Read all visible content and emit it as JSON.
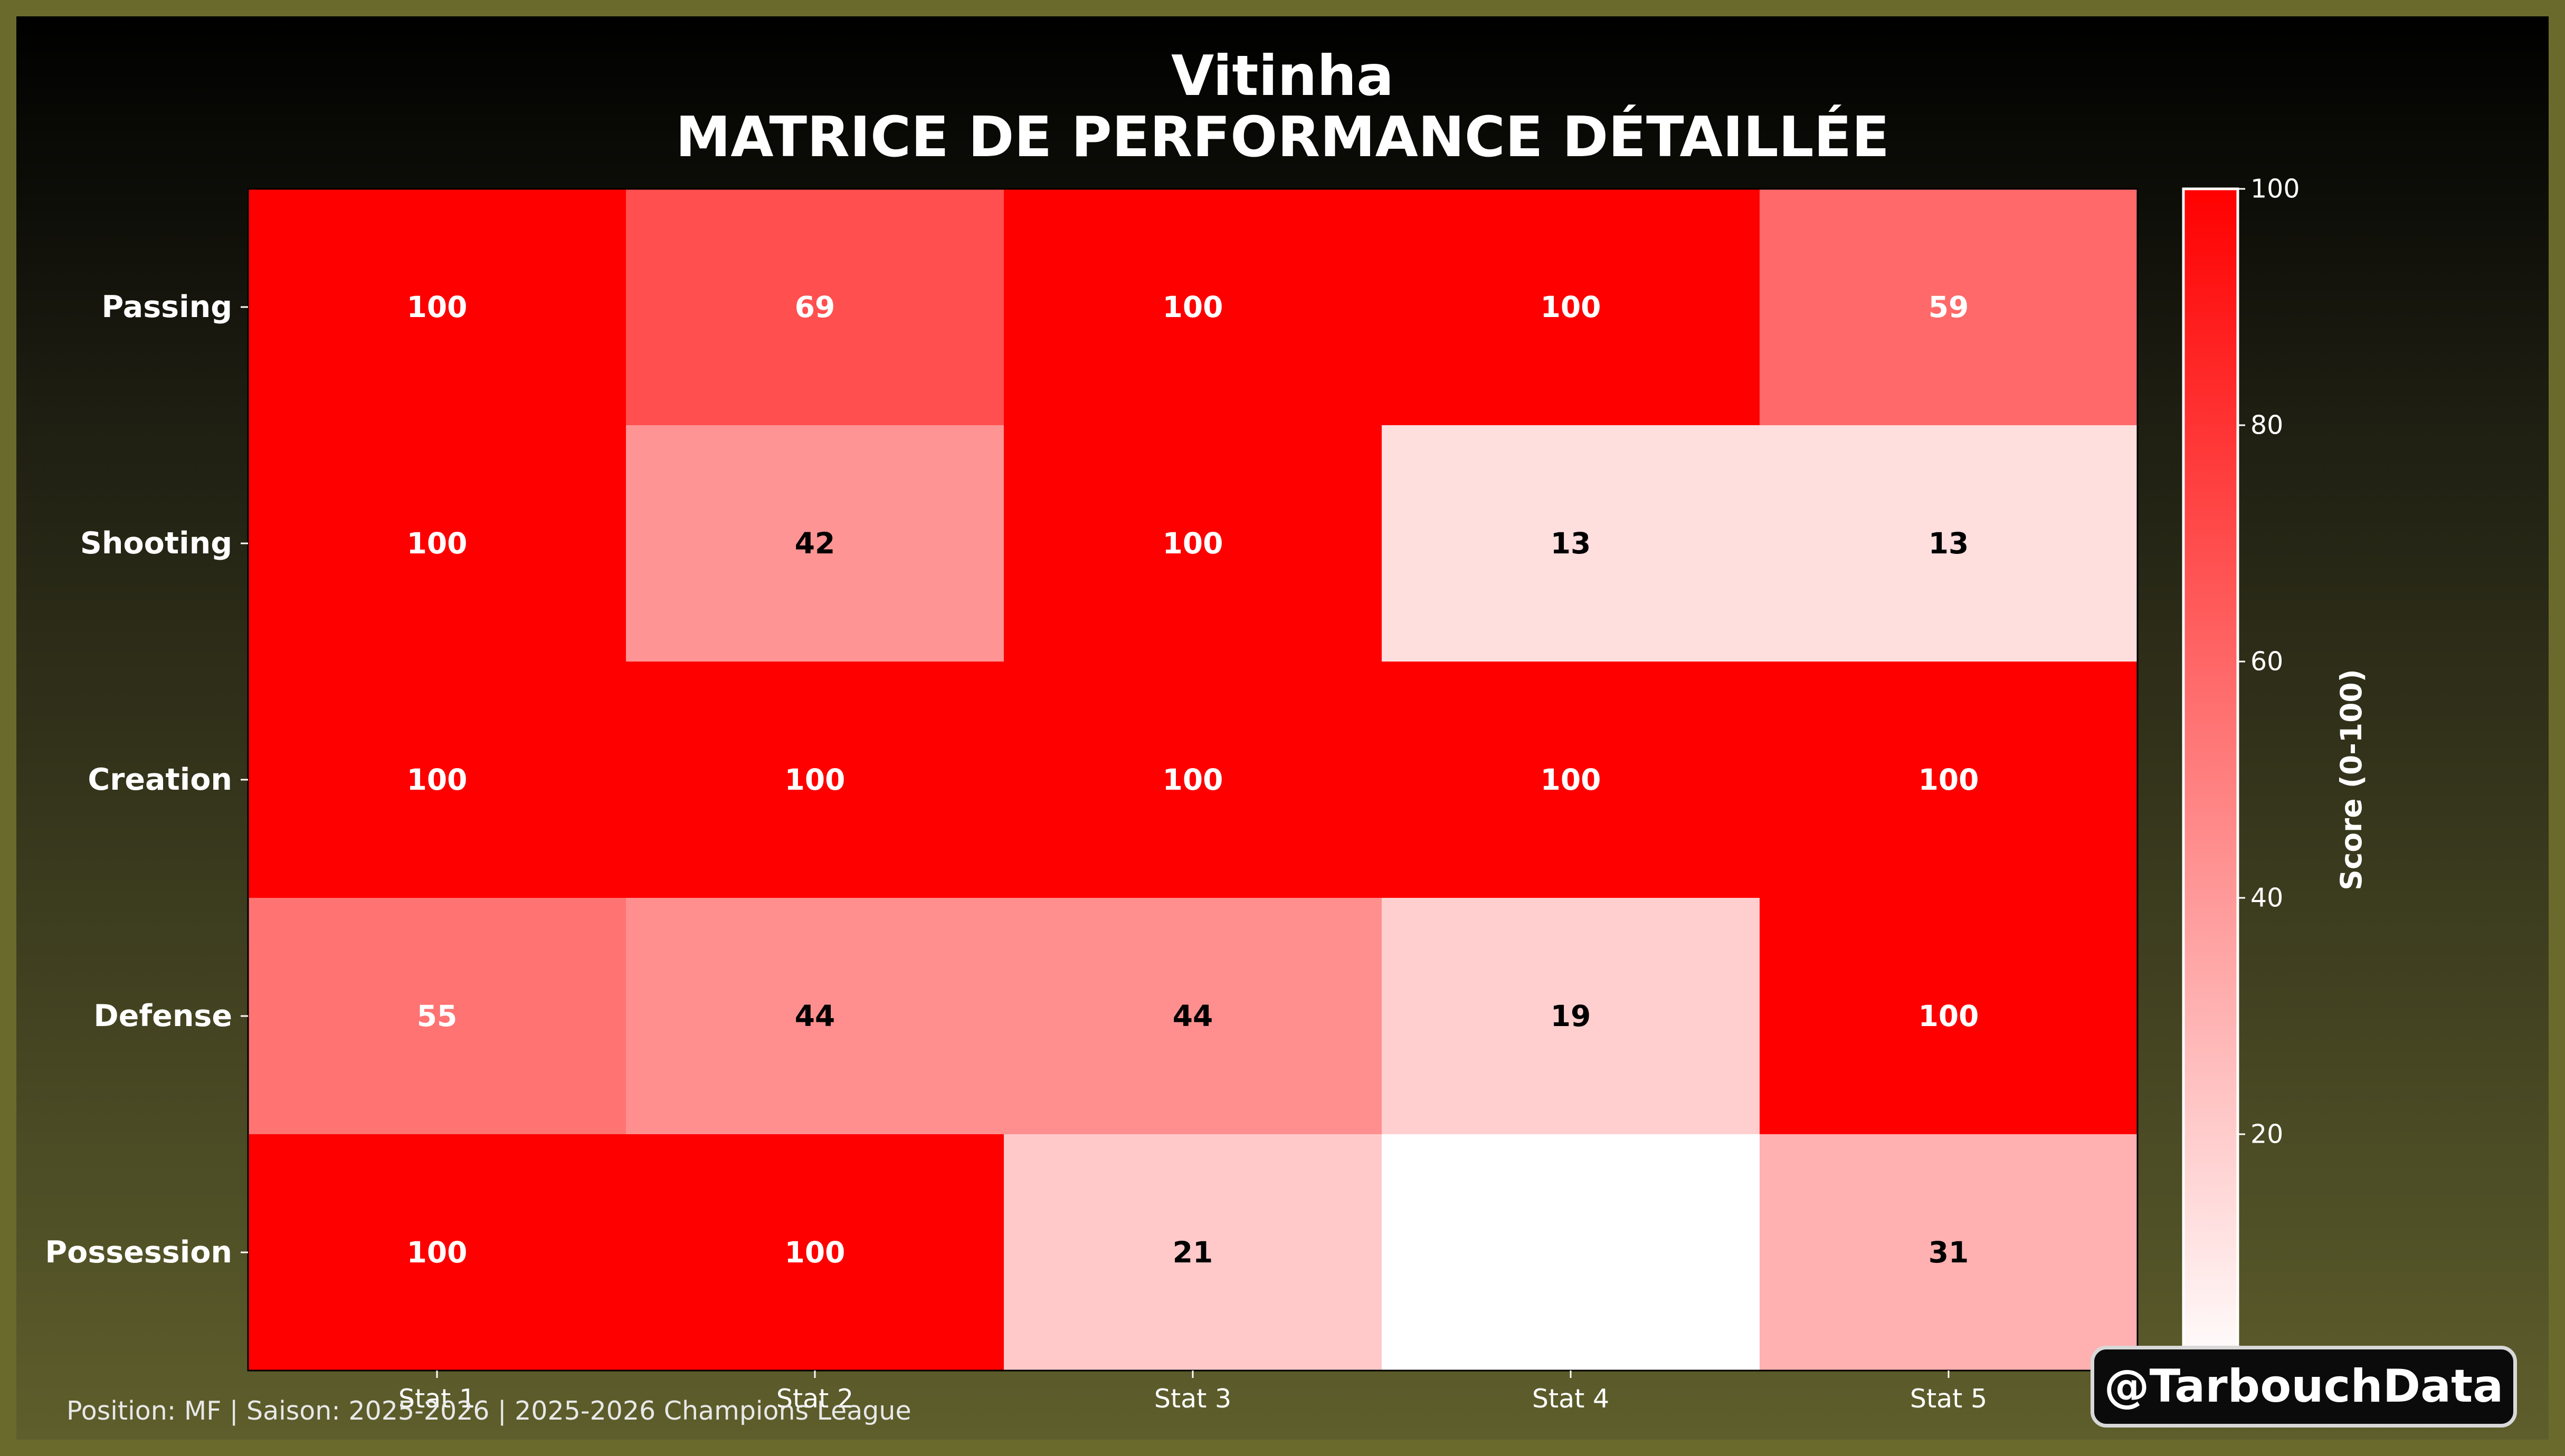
{
  "header": {
    "player": "Vitinha",
    "subtitle": "MATRICE DE PERFORMANCE DÉTAILLÉE"
  },
  "footer": {
    "info": "Position: MF | Saison: 2025-2026 | 2025-2026 Champions League",
    "watermark": "@TarbouchData"
  },
  "chart_data": {
    "type": "heatmap",
    "rows": [
      "Passing",
      "Shooting",
      "Creation",
      "Defense",
      "Possession"
    ],
    "columns": [
      "Stat 1",
      "Stat 2",
      "Stat 3",
      "Stat 4",
      "Stat 5"
    ],
    "values": [
      [
        100,
        69,
        100,
        100,
        59
      ],
      [
        100,
        42,
        100,
        13,
        13
      ],
      [
        100,
        100,
        100,
        100,
        100
      ],
      [
        55,
        44,
        44,
        19,
        100
      ],
      [
        100,
        100,
        21,
        0,
        31
      ]
    ],
    "cell_labels": [
      [
        "100",
        "69",
        "100",
        "100",
        "59"
      ],
      [
        "100",
        "42",
        "100",
        "13",
        "13"
      ],
      [
        "100",
        "100",
        "100",
        "100",
        "100"
      ],
      [
        "55",
        "44",
        "44",
        "19",
        "100"
      ],
      [
        "100",
        "100",
        "21",
        "",
        "31"
      ]
    ],
    "colorbar": {
      "label": "Score (0-100)",
      "min": 0,
      "max": 100,
      "ticks": [
        0,
        20,
        40,
        60,
        80,
        100
      ]
    },
    "colors": {
      "low": "#ffffff",
      "high": "#ff0000",
      "label_dark": "#000000",
      "label_light": "#ffffff"
    }
  }
}
